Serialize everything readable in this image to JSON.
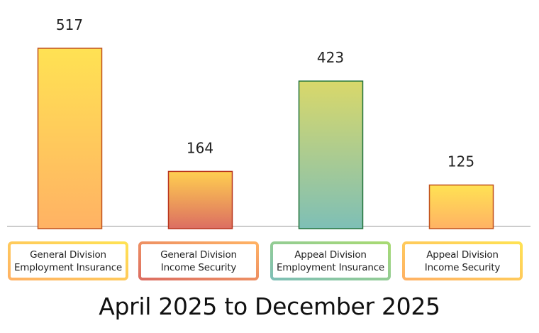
{
  "chart_data": {
    "type": "bar",
    "categories": [
      [
        "General Division",
        "Employment Insurance"
      ],
      [
        "General Division",
        "Income Security"
      ],
      [
        "Appeal Division",
        "Employment Insurance"
      ],
      [
        "Appeal Division",
        "Income Security"
      ]
    ],
    "values": [
      517,
      164,
      423,
      125
    ],
    "value_labels": [
      "517",
      "164",
      "423",
      "125"
    ],
    "ylim": [
      0,
      517
    ],
    "grid": false,
    "legend": "none",
    "caption": "April 2025 to December 2025",
    "colors": {
      "bars": [
        {
          "top": "#FFE253",
          "bottom": "#FFB264",
          "stroke": "#C0501C"
        },
        {
          "top": "#FFCF50",
          "bottom": "#DC6E62",
          "stroke": "#B8321B"
        },
        {
          "top": "#D9D86A",
          "bottom": "#7EBFB6",
          "stroke": "#22733A"
        },
        {
          "top": "#FFE253",
          "bottom": "#FFB264",
          "stroke": "#C0501C"
        }
      ],
      "label_borders": [
        {
          "from": "#FFB264",
          "to": "#FFE253"
        },
        {
          "from": "#DC6E62",
          "to": "#FFB264"
        },
        {
          "from": "#7EBFB6",
          "to": "#A8DA72"
        },
        {
          "from": "#FFB264",
          "to": "#FFE253"
        }
      ],
      "baseline": "#999999"
    }
  }
}
